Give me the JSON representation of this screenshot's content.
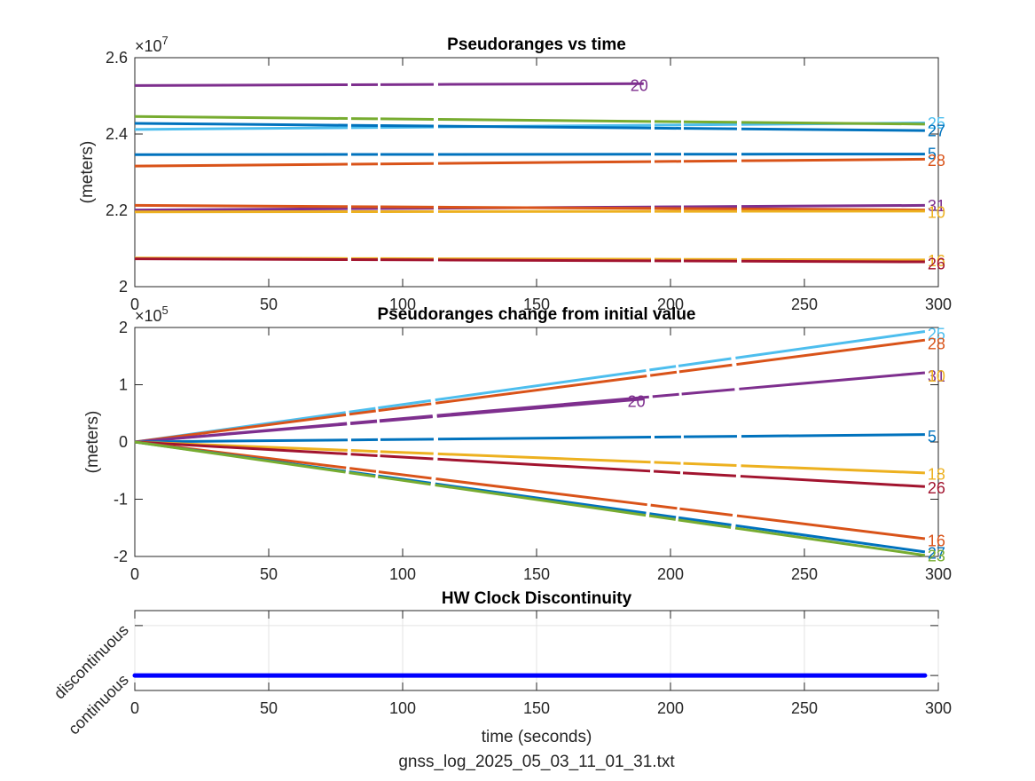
{
  "chart_data": [
    {
      "type": "line",
      "title": "Pseudoranges vs time",
      "xlabel": "",
      "ylabel": "(meters)",
      "y_exponent": "×10",
      "y_exponent_power": "7",
      "xlim": [
        0,
        300
      ],
      "ylim": [
        2.0,
        2.6
      ],
      "x_ticks": [
        "0",
        "50",
        "100",
        "150",
        "200",
        "250",
        "300"
      ],
      "y_ticks": [
        "2",
        "2.2",
        "2.4",
        "2.6"
      ],
      "series": [
        {
          "name": "20",
          "color": "#7E2F8E",
          "x": [
            0,
            190
          ],
          "y": [
            2.527,
            2.532
          ]
        },
        {
          "name": "25",
          "color": "#4DBEEE",
          "x": [
            0,
            295
          ],
          "y": [
            2.412,
            2.429
          ]
        },
        {
          "name": "23",
          "color": "#77AC30",
          "x": [
            0,
            295
          ],
          "y": [
            2.446,
            2.426
          ]
        },
        {
          "name": "27",
          "color": "#0072BD",
          "x": [
            0,
            295
          ],
          "y": [
            2.428,
            2.409
          ]
        },
        {
          "name": "5",
          "color": "#0072BD",
          "x": [
            0,
            295
          ],
          "y": [
            2.346,
            2.3475
          ]
        },
        {
          "name": "28",
          "color": "#D95319",
          "x": [
            0,
            295
          ],
          "y": [
            2.316,
            2.334
          ]
        },
        {
          "name": "31",
          "color": "#7E2F8E",
          "x": [
            0,
            295
          ],
          "y": [
            2.201,
            2.213
          ]
        },
        {
          "name": "10",
          "color": "#D95319",
          "x": [
            0,
            295
          ],
          "y": [
            2.213,
            2.201
          ]
        },
        {
          "name": "18",
          "color": "#EDB120",
          "x": [
            0,
            295
          ],
          "y": [
            2.196,
            2.198
          ]
        },
        {
          "name": "16",
          "color": "#EDB120",
          "x": [
            0,
            295
          ],
          "y": [
            2.075,
            2.07
          ]
        },
        {
          "name": "26",
          "color": "#A2142F",
          "x": [
            0,
            295
          ],
          "y": [
            2.073,
            2.065
          ]
        }
      ],
      "labels": [
        {
          "text": "20",
          "color": "#7E2F8E",
          "x": 185,
          "y": 2.529
        },
        {
          "text": "25",
          "color": "#4DBEEE",
          "x": 296,
          "y": 2.43
        },
        {
          "text": "27",
          "color": "#0072BD",
          "x": 296,
          "y": 2.41
        },
        {
          "text": "5",
          "color": "#0072BD",
          "x": 296,
          "y": 2.35
        },
        {
          "text": "28",
          "color": "#D95319",
          "x": 296,
          "y": 2.332
        },
        {
          "text": "31",
          "color": "#7E2F8E",
          "x": 296,
          "y": 2.214
        },
        {
          "text": "10",
          "color": "#EDB120",
          "x": 296,
          "y": 2.196
        },
        {
          "text": "16",
          "color": "#EDB120",
          "x": 296,
          "y": 2.07
        },
        {
          "text": "26",
          "color": "#A2142F",
          "x": 296,
          "y": 2.062
        }
      ]
    },
    {
      "type": "line",
      "title": "Pseudoranges change from initial value",
      "xlabel": "",
      "ylabel": "(meters)",
      "y_exponent": "×10",
      "y_exponent_power": "5",
      "xlim": [
        0,
        300
      ],
      "ylim": [
        -2,
        2
      ],
      "x_ticks": [
        "0",
        "50",
        "100",
        "150",
        "200",
        "250",
        "300"
      ],
      "y_ticks": [
        "-2",
        "-1",
        "0",
        "1",
        "2"
      ],
      "series": [
        {
          "name": "25",
          "color": "#4DBEEE",
          "x": [
            0,
            295
          ],
          "y": [
            0,
            1.93
          ]
        },
        {
          "name": "28",
          "color": "#D95319",
          "x": [
            0,
            295
          ],
          "y": [
            0,
            1.78
          ]
        },
        {
          "name": "31",
          "color": "#7E2F8E",
          "x": [
            0,
            295
          ],
          "y": [
            0,
            1.21
          ]
        },
        {
          "name": "20",
          "color": "#7E2F8E",
          "x": [
            0,
            190
          ],
          "y": [
            0,
            0.75
          ]
        },
        {
          "name": "5",
          "color": "#0072BD",
          "x": [
            0,
            295
          ],
          "y": [
            0,
            0.13
          ]
        },
        {
          "name": "18",
          "color": "#EDB120",
          "x": [
            0,
            295
          ],
          "y": [
            0,
            -0.54
          ]
        },
        {
          "name": "26",
          "color": "#A2142F",
          "x": [
            0,
            295
          ],
          "y": [
            0,
            -0.78
          ]
        },
        {
          "name": "16",
          "color": "#D95319",
          "x": [
            0,
            295
          ],
          "y": [
            0,
            -1.69
          ]
        },
        {
          "name": "27",
          "color": "#0072BD",
          "x": [
            0,
            295
          ],
          "y": [
            0,
            -1.92
          ]
        },
        {
          "name": "23",
          "color": "#77AC30",
          "x": [
            0,
            295
          ],
          "y": [
            0,
            -1.98
          ]
        }
      ],
      "labels": [
        {
          "text": "25",
          "color": "#4DBEEE",
          "x": 296,
          "y": 1.9
        },
        {
          "text": "28",
          "color": "#D95319",
          "x": 296,
          "y": 1.73
        },
        {
          "text": "31",
          "color": "#7E2F8E",
          "x": 296,
          "y": 1.16
        },
        {
          "text": "10",
          "color": "#EDB120",
          "x": 296,
          "y": 1.16
        },
        {
          "text": "20",
          "color": "#7E2F8E",
          "x": 184,
          "y": 0.72
        },
        {
          "text": "5",
          "color": "#0072BD",
          "x": 296,
          "y": 0.11
        },
        {
          "text": "18",
          "color": "#EDB120",
          "x": 296,
          "y": -0.55
        },
        {
          "text": "26",
          "color": "#A2142F",
          "x": 296,
          "y": -0.79
        },
        {
          "text": "16",
          "color": "#D95319",
          "x": 296,
          "y": -1.71
        },
        {
          "text": "27",
          "color": "#0072BD",
          "x": 296,
          "y": -1.93
        },
        {
          "text": "23",
          "color": "#77AC30",
          "x": 296,
          "y": -1.98
        }
      ]
    },
    {
      "type": "scatter",
      "title": "HW Clock Discontinuity",
      "xlabel": "time (seconds)",
      "ylabel": "",
      "xlim": [
        0,
        300
      ],
      "ylim": [
        -0.3,
        1.3
      ],
      "x_ticks": [
        "0",
        "50",
        "100",
        "150",
        "200",
        "250",
        "300"
      ],
      "y_ticks": [
        "continuous",
        "discontinuous"
      ],
      "grid": true,
      "series": [
        {
          "name": "",
          "color": "#0000FF",
          "x_start": 0,
          "x_end": 295,
          "y": 0
        }
      ]
    }
  ],
  "footer": {
    "filename": "gnss_log_2025_05_03_11_01_31.txt"
  }
}
